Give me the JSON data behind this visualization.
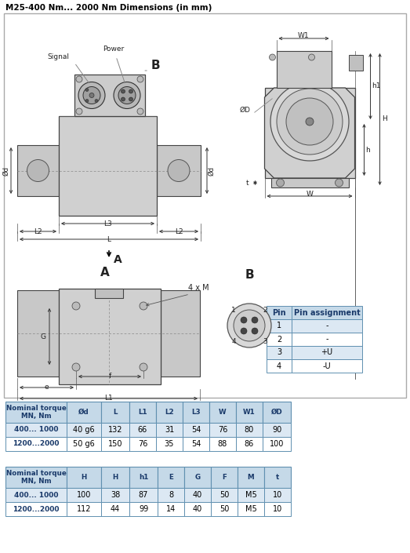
{
  "title": "M25-400 Nm... 2000 Nm Dimensions (in mm)",
  "title_fontsize": 7.5,
  "bg_color": "#ffffff",
  "table1_header": [
    "Nominal torque\nMN, Nm",
    "Ød",
    "L",
    "L1",
    "L2",
    "L3",
    "W",
    "W1",
    "ØD"
  ],
  "table1_rows": [
    [
      "400... 1000",
      "40 g6",
      "132",
      "66",
      "31",
      "54",
      "76",
      "80",
      "90"
    ],
    [
      "1200...2000",
      "50 g6",
      "150",
      "76",
      "35",
      "54",
      "88",
      "86",
      "100"
    ]
  ],
  "table2_header": [
    "Nominal torque\nMN, Nm",
    "H",
    "H",
    "h1",
    "E",
    "G",
    "F",
    "M",
    "t"
  ],
  "table2_rows": [
    [
      "400... 1000",
      "100",
      "38",
      "87",
      "8",
      "40",
      "50",
      "M5",
      "10"
    ],
    [
      "1200...2000",
      "112",
      "44",
      "99",
      "14",
      "40",
      "50",
      "M5",
      "10"
    ]
  ],
  "pin_table_header": [
    "Pin",
    "Pin assignment"
  ],
  "pin_table_rows": [
    [
      "1",
      "-"
    ],
    [
      "2",
      "-"
    ],
    [
      "3",
      "+U"
    ],
    [
      "4",
      "-U"
    ]
  ],
  "header_bg": "#c5d9e8",
  "row_bg_alt": "#dce8f3",
  "row_bg": "#ffffff",
  "border_color": "#6090b0",
  "text_color": "#000000",
  "bold_color": "#1a3a6a",
  "diagram_border": "#888888",
  "body_fill": "#d8d8d8",
  "shaft_fill": "#c8c8c8",
  "conn_fill": "#c0c0c0",
  "dark_fill": "#a0a0a0",
  "line_color": "#444444"
}
